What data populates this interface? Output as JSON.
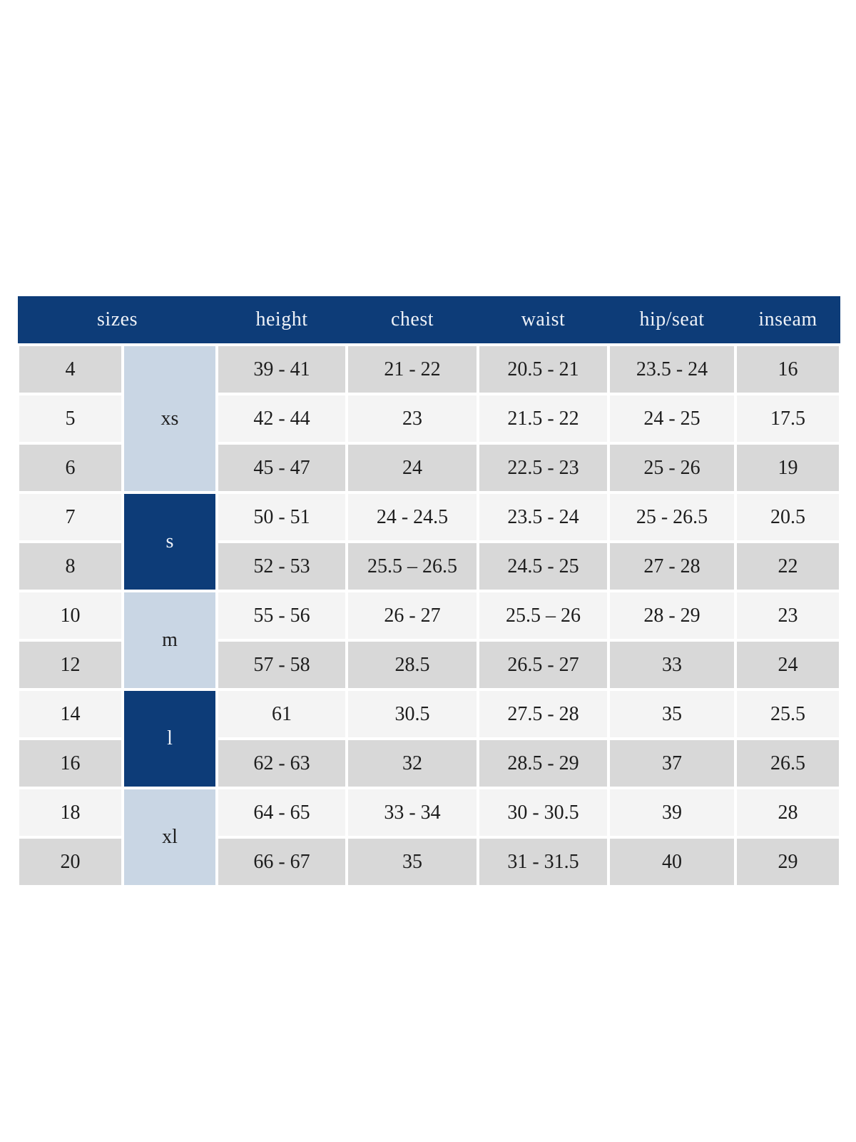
{
  "table": {
    "columns": [
      "sizes",
      "height",
      "chest",
      "waist",
      "hip/seat",
      "inseam"
    ],
    "colors": {
      "header_bg": "#0d3c78",
      "header_text": "#eef2f8",
      "group_light_bg": "#c9d6e4",
      "group_dark_bg": "#0d3c78",
      "group_dark_text": "#eef2f8",
      "row_gray": "#d8d8d8",
      "row_light": "#f4f4f4",
      "body_text": "#1d1d1d",
      "gap": "#ffffff"
    },
    "groups": [
      {
        "label": "xs",
        "span": 3,
        "style": "light"
      },
      {
        "label": "s",
        "span": 2,
        "style": "dark"
      },
      {
        "label": "m",
        "span": 2,
        "style": "light"
      },
      {
        "label": "l",
        "span": 2,
        "style": "dark"
      },
      {
        "label": "xl",
        "span": 2,
        "style": "light"
      }
    ],
    "rows": [
      {
        "size": "4",
        "height": "39 - 41",
        "chest": "21 - 22",
        "waist": "20.5 - 21",
        "hip": "23.5 - 24",
        "inseam": "16"
      },
      {
        "size": "5",
        "height": "42 - 44",
        "chest": "23",
        "waist": "21.5 - 22",
        "hip": "24 - 25",
        "inseam": "17.5"
      },
      {
        "size": "6",
        "height": "45 - 47",
        "chest": "24",
        "waist": "22.5 - 23",
        "hip": "25 - 26",
        "inseam": "19"
      },
      {
        "size": "7",
        "height": "50 - 51",
        "chest": "24 - 24.5",
        "waist": "23.5 - 24",
        "hip": "25 - 26.5",
        "inseam": "20.5"
      },
      {
        "size": "8",
        "height": "52 - 53",
        "chest": "25.5 – 26.5",
        "waist": "24.5 - 25",
        "hip": "27 - 28",
        "inseam": "22"
      },
      {
        "size": "10",
        "height": "55 - 56",
        "chest": "26 - 27",
        "waist": "25.5 – 26",
        "hip": "28 - 29",
        "inseam": "23"
      },
      {
        "size": "12",
        "height": "57 - 58",
        "chest": "28.5",
        "waist": "26.5 - 27",
        "hip": "33",
        "inseam": "24"
      },
      {
        "size": "14",
        "height": "61",
        "chest": "30.5",
        "waist": "27.5 - 28",
        "hip": "35",
        "inseam": "25.5"
      },
      {
        "size": "16",
        "height": "62 - 63",
        "chest": "32",
        "waist": "28.5 - 29",
        "hip": "37",
        "inseam": "26.5"
      },
      {
        "size": "18",
        "height": "64 - 65",
        "chest": "33 - 34",
        "waist": "30 - 30.5",
        "hip": "39",
        "inseam": "28"
      },
      {
        "size": "20",
        "height": "66 - 67",
        "chest": "35",
        "waist": "31 - 31.5",
        "hip": "40",
        "inseam": "29"
      }
    ]
  }
}
